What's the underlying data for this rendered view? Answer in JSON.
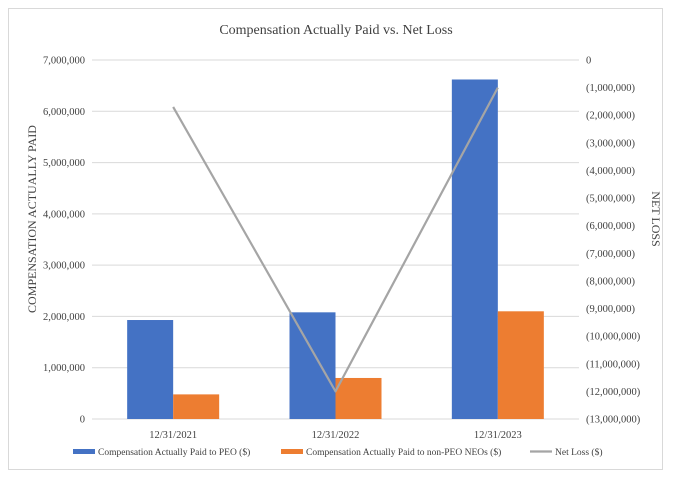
{
  "chart_data": {
    "type": "bar",
    "title": "Compensation Actually  Paid vs. Net Loss",
    "categories": [
      "12/31/2021",
      "12/31/2022",
      "12/31/2023"
    ],
    "ylabel": "COMPENSATION ACTUALLY PAID",
    "y2label": "NET  LOSS",
    "ylim": [
      0,
      7000000
    ],
    "y2lim": [
      -13000000,
      0
    ],
    "yticks": [
      "0",
      "1,000,000",
      "2,000,000",
      "3,000,000",
      "4,000,000",
      "5,000,000",
      "6,000,000",
      "7,000,000"
    ],
    "y2ticks": [
      "0",
      "(1,000,000)",
      "(2,000,000)",
      "(3,000,000)",
      "(4,000,000)",
      "(5,000,000)",
      "(6,000,000)",
      "(7,000,000)",
      "(8,000,000)",
      "(9,000,000)",
      "(10,000,000)",
      "(11,000,000)",
      "(12,000,000)",
      "(13,000,000)"
    ],
    "grid": true,
    "legend": "bottom",
    "series": [
      {
        "name": "Compensation Actually Paid to PEO ($)",
        "type": "bar",
        "axis": "left",
        "color": "#4472c4",
        "values": [
          1930000,
          2080000,
          6620000
        ]
      },
      {
        "name": "Compensation Actually Paid to non-PEO NEOs ($)",
        "type": "bar",
        "axis": "left",
        "color": "#ed7d31",
        "values": [
          480000,
          800000,
          2100000
        ]
      },
      {
        "name": "Net Loss ($)",
        "type": "line",
        "axis": "right",
        "color": "#a5a5a5",
        "values": [
          -1700000,
          -12000000,
          -1000000
        ]
      }
    ]
  }
}
